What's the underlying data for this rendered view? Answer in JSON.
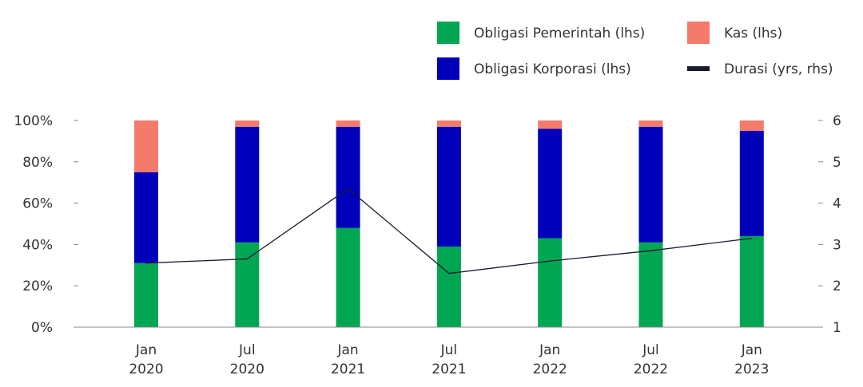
{
  "chart_data": {
    "type": "bar",
    "stacked": true,
    "categories": [
      [
        "Jan",
        "2020"
      ],
      [
        "Jul",
        "2020"
      ],
      [
        "Jan",
        "2021"
      ],
      [
        "Jul",
        "2021"
      ],
      [
        "Jan",
        "2022"
      ],
      [
        "Jul",
        "2022"
      ],
      [
        "Jan",
        "2023"
      ]
    ],
    "series": [
      {
        "name": "Obligasi Pemerintah (lhs)",
        "color": "#00a651",
        "axis": "left",
        "values": [
          31,
          41,
          48,
          39,
          43,
          41,
          44
        ]
      },
      {
        "name": "Obligasi Korporasi (lhs)",
        "color": "#0000bb",
        "axis": "left",
        "values": [
          44,
          56,
          49,
          58,
          53,
          56,
          51
        ]
      },
      {
        "name": "Kas (lhs)",
        "color": "#f47b6b",
        "axis": "left",
        "values": [
          25,
          3,
          3,
          3,
          4,
          3,
          5
        ]
      }
    ],
    "line_series": {
      "name": "Durasi (yrs, rhs)",
      "color": "#1a1a2e",
      "axis": "right",
      "values": [
        2.55,
        2.65,
        4.35,
        2.3,
        2.6,
        2.85,
        3.15
      ]
    },
    "ylim": [
      0,
      100
    ],
    "y_ticks": [
      "0%",
      "20%",
      "40%",
      "60%",
      "80%",
      "100%"
    ],
    "y2lim": [
      1,
      6
    ],
    "y2_ticks": [
      "1",
      "2",
      "3",
      "4",
      "5",
      "6"
    ],
    "legend": [
      {
        "label": "Obligasi Pemerintah (lhs)",
        "color": "#00a651",
        "shape": "box"
      },
      {
        "label": "Kas (lhs)",
        "color": "#f47b6b",
        "shape": "box"
      },
      {
        "label": "Obligasi Korporasi (lhs)",
        "color": "#0000bb",
        "shape": "box"
      },
      {
        "label": "Durasi (yrs, rhs)",
        "color": "#1a1a2e",
        "shape": "line"
      }
    ],
    "legend_position": "top-right",
    "grid": false
  }
}
